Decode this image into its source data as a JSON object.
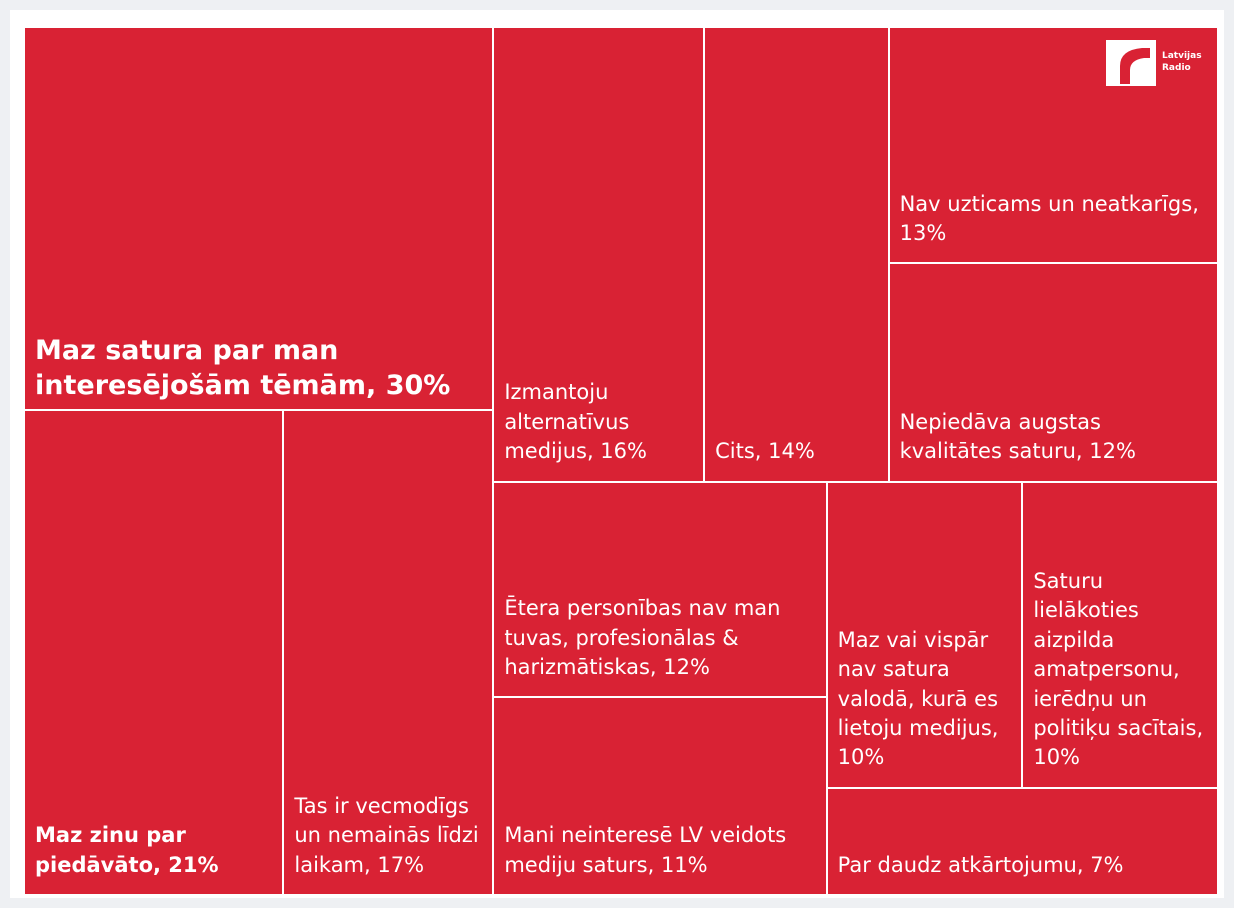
{
  "chart_data": {
    "type": "treemap",
    "color": "#d92234",
    "logo_text": "Latvijas Radio",
    "labels": [
      "Maz satura par man interesējošām tēmām, 30%",
      "Maz zinu par piedāvāto, 21%",
      "Tas ir vecmodīgs un nemainās līdzi laikam, 17%",
      "Izmantoju alternatīvus medijus, 16%",
      "Cits, 14%",
      "Nav uzticams un neatkarīgs, 13%",
      "Nepiedāva augstas kvalitātes saturu, 12%",
      "Ētera personības nav man tuvas, profesionālas & harizmātiskas, 12%",
      "Mani neinteresē LV veidots mediju saturs, 11%",
      "Maz vai vispār nav satura valodā, kurā es lietoju medijus, 10%",
      "Saturu lielākoties aizpilda amatpersonu, ierēdņu un politiķu sacītais, 10%",
      "Par daudz atkārtojumu, 7%"
    ],
    "values": [
      30,
      21,
      17,
      16,
      14,
      13,
      12,
      12,
      11,
      10,
      10,
      7
    ]
  }
}
